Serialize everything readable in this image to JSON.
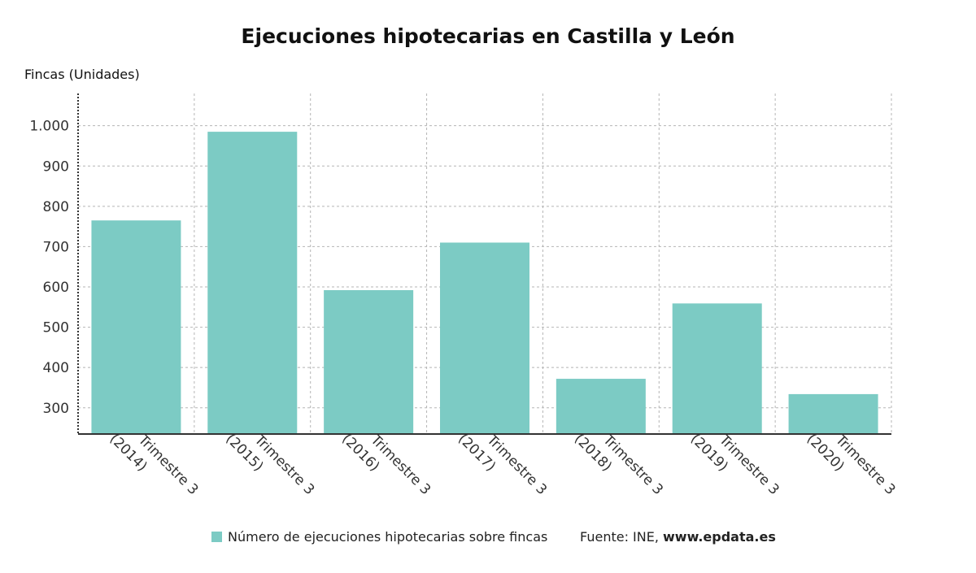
{
  "chart_data": {
    "type": "bar",
    "title": "Ejecuciones hipotecarias en Castilla y León",
    "ylabel": "Fincas (Unidades)",
    "xlabel": "",
    "categories": [
      [
        "Trimestre 3",
        "(2014)"
      ],
      [
        "Trimestre 3",
        "(2015)"
      ],
      [
        "Trimestre 3",
        "(2016)"
      ],
      [
        "Trimestre 3",
        "(2017)"
      ],
      [
        "Trimestre 3",
        "(2018)"
      ],
      [
        "Trimestre 3",
        "(2019)"
      ],
      [
        "Trimestre 3",
        "(2020)"
      ]
    ],
    "series": [
      {
        "name": "Número de ejecuciones hipotecarias sobre fincas",
        "values": [
          765,
          985,
          592,
          710,
          372,
          559,
          334
        ]
      }
    ],
    "ylim": [
      235,
      1080
    ],
    "yticks": [
      300,
      400,
      500,
      600,
      700,
      800,
      900,
      1000
    ],
    "ytick_labels": [
      "300",
      "400",
      "500",
      "600",
      "700",
      "800",
      "900",
      "1.000"
    ],
    "grid": true,
    "legend_position": "bottom",
    "colors": {
      "bar": "#7ccbc4",
      "grid": "#b5b5b5",
      "axis": "#333333",
      "text": "#333333"
    }
  },
  "footer": {
    "source_prefix": "Fuente: INE, ",
    "source_site": "www.epdata.es"
  }
}
